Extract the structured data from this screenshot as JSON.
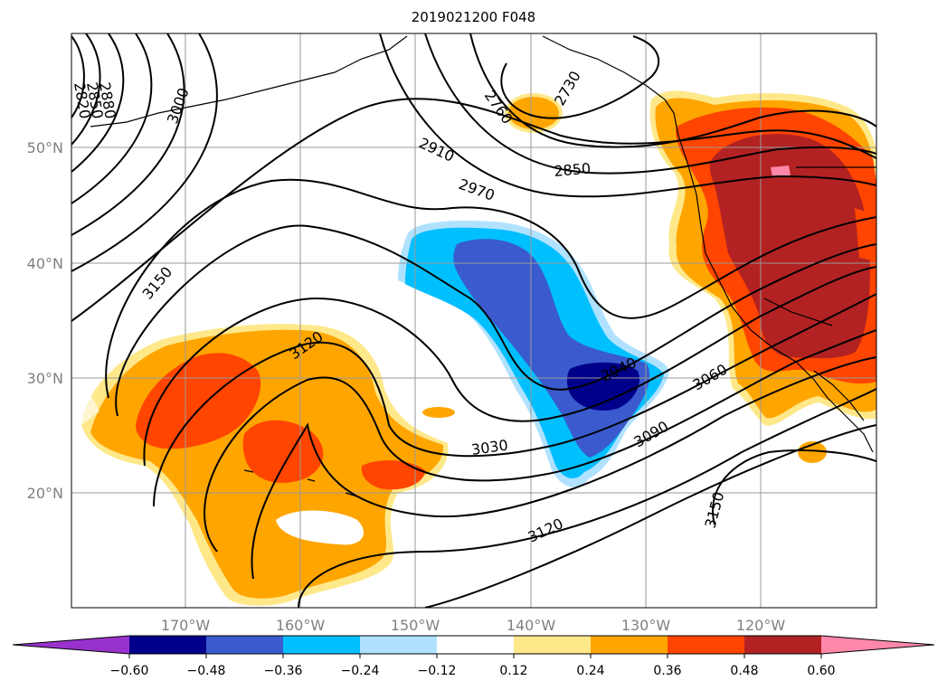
{
  "title": "2019021200 F048",
  "lat_labels": [
    "50°N",
    "40°N",
    "30°N",
    "20°N"
  ],
  "lon_labels": [
    "170°W",
    "160°W",
    "150°W",
    "140°W",
    "130°W",
    "120°W"
  ],
  "contour_labels": [
    "2820",
    "2850",
    "2880",
    "3000",
    "2760",
    "2730",
    "2910",
    "2970",
    "2850",
    "3150",
    "3120",
    "2940",
    "3060",
    "3030",
    "3090",
    "3120",
    "3150"
  ],
  "colorbar": {
    "ticks": [
      "−0.60",
      "−0.48",
      "−0.36",
      "−0.24",
      "−0.12",
      "0.12",
      "0.24",
      "0.36",
      "0.48",
      "0.60"
    ],
    "colors": [
      "#9932cc",
      "#00008b",
      "#3a5acd",
      "#00bfff",
      "#b0e2ff",
      "#ffffff",
      "#ffe88a",
      "#ffa500",
      "#ff4500",
      "#b22222",
      "#ff88aa"
    ]
  },
  "anomaly_colors": {
    "neg1": "#b0e2ff",
    "neg2": "#00bfff",
    "neg3": "#3a5acd",
    "neg4": "#00008b",
    "pos1": "#ffe88a",
    "pos2": "#ffa500",
    "pos3": "#ff4500",
    "pos4": "#b22222",
    "pos5": "#ff88aa"
  }
}
